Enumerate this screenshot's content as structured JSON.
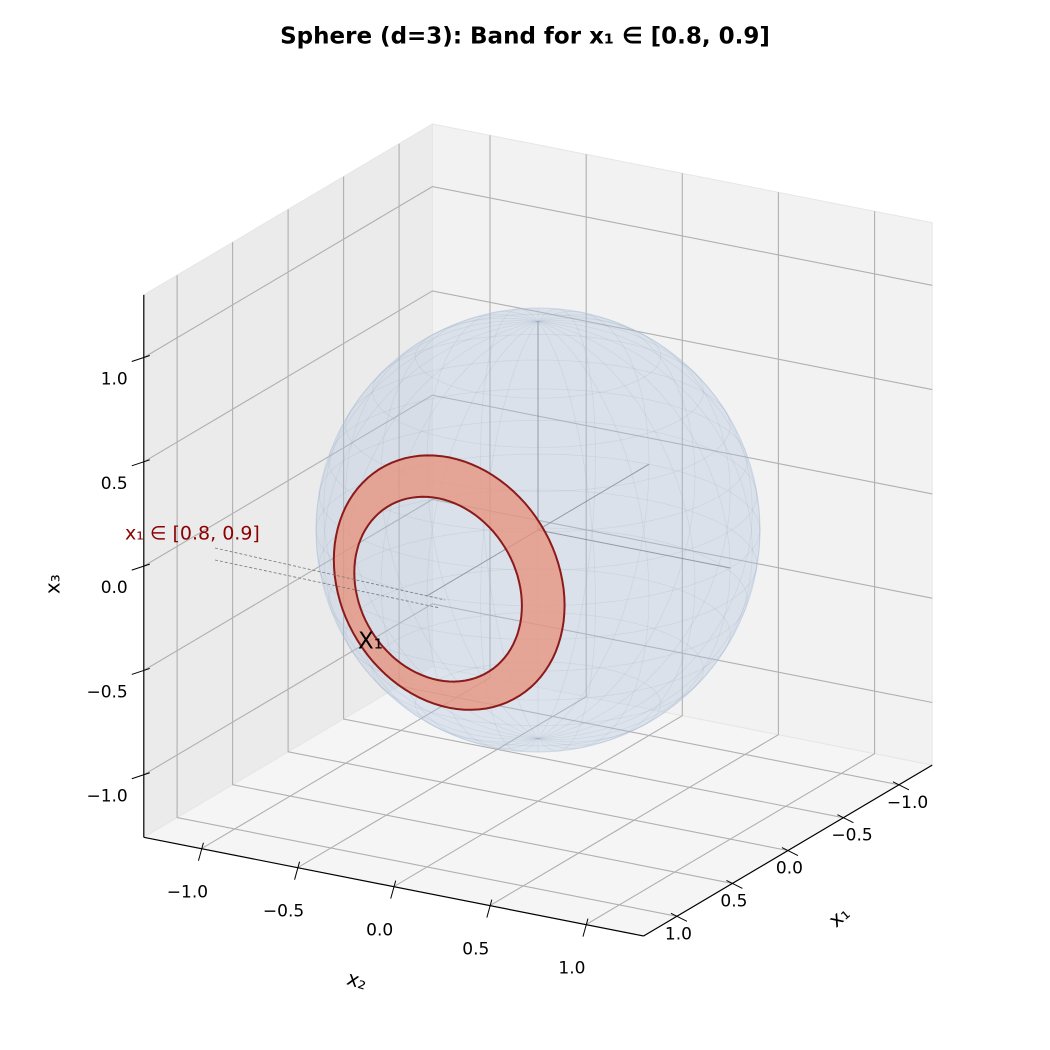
{
  "chart_data": {
    "type": "sphere3d",
    "title": "Sphere (d=3): Band for x₁ ∈ [0.8, 0.9]",
    "xlabel": "x₁",
    "ylabel": "x₂",
    "zlabel": "x₃",
    "xlim": [
      -1.3,
      1.3
    ],
    "ylim": [
      -1.3,
      1.3
    ],
    "zlim": [
      -1.3,
      1.3
    ],
    "xticks": [
      {
        "value": -1,
        "label": "−1.0"
      },
      {
        "value": -0.5,
        "label": "−0.5"
      },
      {
        "value": 0,
        "label": "0.0"
      },
      {
        "value": 0.5,
        "label": "0.5"
      },
      {
        "value": 1,
        "label": "1.0"
      }
    ],
    "yticks": [
      {
        "value": -1,
        "label": "−1.0"
      },
      {
        "value": -0.5,
        "label": "−0.5"
      },
      {
        "value": 0,
        "label": "0.0"
      },
      {
        "value": 0.5,
        "label": "0.5"
      },
      {
        "value": 1,
        "label": "1.0"
      }
    ],
    "zticks": [
      {
        "value": -1,
        "label": "−1.0"
      },
      {
        "value": -0.5,
        "label": "−0.5"
      },
      {
        "value": 0,
        "label": "0.0"
      },
      {
        "value": 0.5,
        "label": "0.5"
      },
      {
        "value": 1,
        "label": "1.0"
      }
    ],
    "sphere_radius": 1,
    "sphere_color": "#b0c4de",
    "band": [
      0.8,
      0.9
    ],
    "band_color": "#e8907a",
    "band_edge_color": "#8b1a1a",
    "annotations": [
      {
        "text": "x₁ ∈ [0.8, 0.9]",
        "color": "#8b0000"
      },
      {
        "text": "X₁",
        "color": "#000000"
      }
    ],
    "grid": true
  }
}
